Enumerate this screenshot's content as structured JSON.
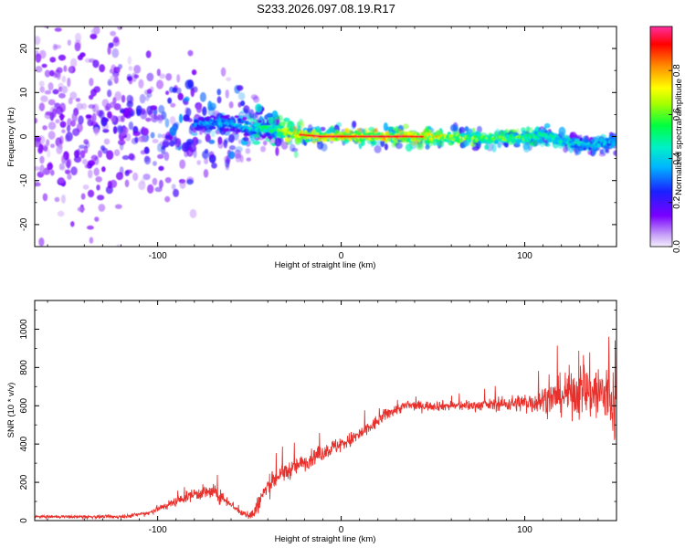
{
  "title": "S233.2026.097.08.19.R17",
  "colors": {
    "purple": "#6b00e0",
    "red_series": "#e8312c"
  },
  "chart_data": [
    {
      "type": "heatmap",
      "xlabel": "Height of straight line (km)",
      "ylabel": "Frequency (Hz)",
      "xlim": [
        -167,
        150
      ],
      "ylim": [
        -25,
        25
      ],
      "x_ticks": [
        -100,
        0,
        100
      ],
      "x_tick_labels": [
        "-100",
        "0",
        "100"
      ],
      "y_ticks": [
        -20,
        -10,
        0,
        10,
        20
      ],
      "y_tick_labels": [
        "-20",
        "-10",
        "0",
        "10",
        "20"
      ],
      "colorbar": {
        "label": "Normalized spectral amplitude",
        "range": [
          0,
          1
        ],
        "ticks": [
          0,
          0.2,
          0.4,
          0.6,
          0.8
        ],
        "tick_labels": [
          "0.0",
          "0.2",
          "0.4",
          "0.6",
          "0.8"
        ],
        "colormap": "rainbow (white-purple-blue-cyan-green-yellow-red-magenta)"
      },
      "ridge": {
        "description_points": [
          [
            -60,
            3
          ],
          [
            -50,
            2
          ],
          [
            -35,
            1.5
          ],
          [
            -25,
            0.5
          ],
          [
            -10,
            0
          ],
          [
            0,
            0
          ],
          [
            40,
            0
          ],
          [
            60,
            -0.2
          ],
          [
            80,
            -0.5
          ],
          [
            100,
            -0.3
          ],
          [
            110,
            0.5
          ],
          [
            120,
            -1
          ],
          [
            135,
            -2
          ],
          [
            150,
            -1
          ]
        ],
        "peak_amplitude": [
          [
            -167,
            0.15
          ],
          [
            -100,
            0.3
          ],
          [
            -60,
            0.45
          ],
          [
            -40,
            0.6
          ],
          [
            -25,
            0.85
          ],
          [
            45,
            0.85
          ],
          [
            70,
            0.7
          ],
          [
            100,
            0.65
          ],
          [
            125,
            0.5
          ],
          [
            150,
            0.45
          ]
        ]
      }
    },
    {
      "type": "line",
      "xlabel": "Height of straight line (km)",
      "ylabel": "SNR (10 * v/v)",
      "xlim": [
        -167,
        150
      ],
      "ylim": [
        0,
        1150
      ],
      "x_ticks": [
        -100,
        0,
        100
      ],
      "x_tick_labels": [
        "-100",
        "0",
        "100"
      ],
      "y_ticks": [
        0,
        200,
        400,
        600,
        800,
        1000
      ],
      "y_tick_labels": [
        "0",
        "200",
        "400",
        "600",
        "800",
        "1000"
      ],
      "series_envelope": [
        [
          -167,
          20
        ],
        [
          -120,
          20
        ],
        [
          -105,
          40
        ],
        [
          -95,
          80
        ],
        [
          -80,
          140
        ],
        [
          -70,
          150
        ],
        [
          -60,
          90
        ],
        [
          -55,
          40
        ],
        [
          -48,
          30
        ],
        [
          -42,
          150
        ],
        [
          -35,
          230
        ],
        [
          -25,
          280
        ],
        [
          -15,
          330
        ],
        [
          -5,
          380
        ],
        [
          5,
          420
        ],
        [
          15,
          480
        ],
        [
          25,
          560
        ],
        [
          35,
          600
        ],
        [
          50,
          600
        ],
        [
          70,
          600
        ],
        [
          90,
          610
        ],
        [
          105,
          620
        ],
        [
          115,
          640
        ],
        [
          125,
          670
        ],
        [
          135,
          680
        ],
        [
          145,
          650
        ],
        [
          150,
          600
        ]
      ],
      "noise_amplitude": [
        [
          -167,
          10
        ],
        [
          -110,
          15
        ],
        [
          -85,
          40
        ],
        [
          -70,
          60
        ],
        [
          -55,
          20
        ],
        [
          -42,
          80
        ],
        [
          -20,
          60
        ],
        [
          0,
          60
        ],
        [
          20,
          50
        ],
        [
          40,
          35
        ],
        [
          80,
          40
        ],
        [
          100,
          70
        ],
        [
          115,
          120
        ],
        [
          130,
          200
        ],
        [
          150,
          300
        ]
      ]
    }
  ]
}
